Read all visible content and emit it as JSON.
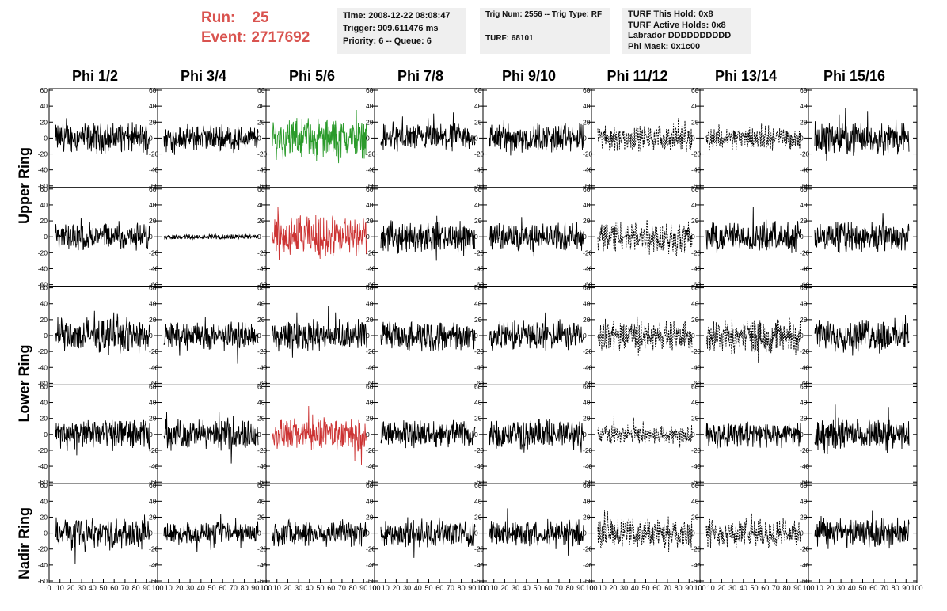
{
  "header": {
    "run_label": "Run:    25",
    "event_label": "Event: 2717692",
    "box1": {
      "line1": "Time: 2008-12-22 08:08:47",
      "line2": "Trigger: 909.611476 ms",
      "line3": "Priority: 6 -- Queue: 6"
    },
    "box2": {
      "line1": "Trig Num: 2556 -- Trig Type: RF",
      "line2": "TURF: 68101"
    },
    "box3": {
      "line1": "TURF This Hold: 0x8",
      "line2": "TURF Active Holds: 0x8",
      "line3": "Labrador DDDDDDDDDD",
      "line4": "Phi Mask: 0x1c00"
    }
  },
  "columns": [
    "Phi 1/2",
    "Phi 3/4",
    "Phi 5/6",
    "Phi 7/8",
    "Phi 9/10",
    "Phi 11/12",
    "Phi 13/14",
    "Phi 15/16"
  ],
  "rings": [
    "Upper Ring",
    "Lower Ring",
    "Nadir Ring"
  ],
  "colors": {
    "normal": "#000000",
    "green": "#2a9a2a",
    "red": "#cc3333",
    "dashed": "#000000",
    "header_red": "#d9534f",
    "infobox_bg": "#efefef"
  },
  "chart_data": {
    "type": "line",
    "grid_rows": 5,
    "grid_cols": 8,
    "ylim": [
      -60,
      60
    ],
    "xlim": [
      0,
      100
    ],
    "yticks": [
      -60,
      -40,
      -20,
      0,
      20,
      40,
      60
    ],
    "xticks": [
      0,
      10,
      20,
      30,
      40,
      50,
      60,
      70,
      80,
      90,
      100
    ],
    "ytick_labels": [
      "-60",
      "-40",
      "-20",
      "0",
      "20",
      "40",
      "60"
    ],
    "xtick_labels": [
      "0",
      "10",
      "20",
      "30",
      "40",
      "50",
      "60",
      "70",
      "80",
      "90",
      "100"
    ],
    "panel_styles": [
      [
        "solid",
        "solid",
        "green",
        "solid",
        "solid",
        "dashed",
        "dashed",
        "solid"
      ],
      [
        "solid",
        "flat",
        "red",
        "solid",
        "solid",
        "dashed",
        "solid",
        "solid"
      ],
      [
        "solid",
        "solid",
        "solid",
        "solid",
        "solid",
        "dashed",
        "dashed",
        "solid"
      ],
      [
        "solid",
        "solid",
        "red",
        "solid",
        "solid",
        "dashed",
        "solid",
        "solid"
      ],
      [
        "solid",
        "solid",
        "solid",
        "solid",
        "solid",
        "dashed",
        "dashed",
        "solid"
      ]
    ],
    "panel_amplitude": [
      [
        14,
        12,
        18,
        13,
        14,
        12,
        11,
        15
      ],
      [
        13,
        2,
        20,
        14,
        13,
        16,
        14,
        14
      ],
      [
        16,
        13,
        14,
        14,
        14,
        14,
        16,
        15
      ],
      [
        14,
        14,
        15,
        13,
        14,
        9,
        12,
        14
      ],
      [
        14,
        10,
        13,
        13,
        12,
        14,
        13,
        14
      ]
    ]
  }
}
